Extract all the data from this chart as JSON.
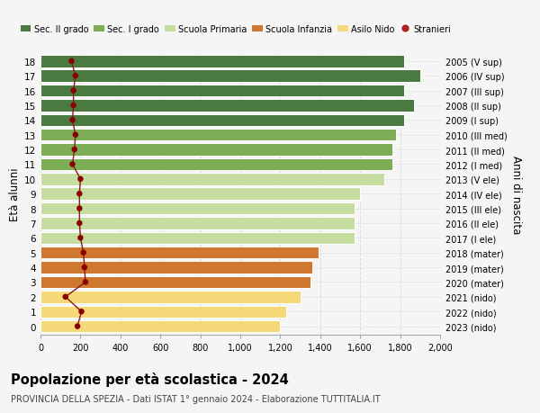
{
  "ages": [
    18,
    17,
    16,
    15,
    14,
    13,
    12,
    11,
    10,
    9,
    8,
    7,
    6,
    5,
    4,
    3,
    2,
    1,
    0
  ],
  "right_labels": [
    "2005 (V sup)",
    "2006 (IV sup)",
    "2007 (III sup)",
    "2008 (II sup)",
    "2009 (I sup)",
    "2010 (III med)",
    "2011 (II med)",
    "2012 (I med)",
    "2013 (V ele)",
    "2014 (IV ele)",
    "2015 (III ele)",
    "2016 (II ele)",
    "2017 (I ele)",
    "2018 (mater)",
    "2019 (mater)",
    "2020 (mater)",
    "2021 (nido)",
    "2022 (nido)",
    "2023 (nido)"
  ],
  "bar_values": [
    1820,
    1900,
    1820,
    1870,
    1820,
    1780,
    1760,
    1760,
    1720,
    1600,
    1570,
    1570,
    1570,
    1390,
    1360,
    1350,
    1300,
    1230,
    1200
  ],
  "bar_colors": [
    "#4a7a40",
    "#4a7a40",
    "#4a7a40",
    "#4a7a40",
    "#4a7a40",
    "#7dae55",
    "#7dae55",
    "#7dae55",
    "#c5dea0",
    "#c5dea0",
    "#c5dea0",
    "#c5dea0",
    "#c5dea0",
    "#d07830",
    "#d07830",
    "#d07830",
    "#f5d878",
    "#f5d878",
    "#f5d878"
  ],
  "stranieri_values": [
    155,
    175,
    165,
    165,
    160,
    175,
    170,
    160,
    200,
    195,
    195,
    195,
    200,
    215,
    220,
    225,
    125,
    205,
    185
  ],
  "xlim": [
    0,
    2000
  ],
  "xticks": [
    0,
    200,
    400,
    600,
    800,
    1000,
    1200,
    1400,
    1600,
    1800,
    2000
  ],
  "xtick_labels": [
    "0",
    "200",
    "400",
    "600",
    "800",
    "1,000",
    "1,200",
    "1,400",
    "1,600",
    "1,800",
    "2,000"
  ],
  "ylabel_left": "Età alunni",
  "ylabel_right": "Anni di nascita",
  "title": "Popolazione per età scolastica - 2024",
  "subtitle": "PROVINCIA DELLA SPEZIA - Dati ISTAT 1° gennaio 2024 - Elaborazione TUTTITALIA.IT",
  "legend_labels": [
    "Sec. II grado",
    "Sec. I grado",
    "Scuola Primaria",
    "Scuola Infanzia",
    "Asilo Nido",
    "Stranieri"
  ],
  "legend_colors": [
    "#4a7a40",
    "#7dae55",
    "#c5dea0",
    "#d07830",
    "#f5d878",
    "#b22222"
  ],
  "bg_color": "#f5f5f5",
  "grid_color": "#dddddd",
  "bar_height": 0.82,
  "stranieri_color": "#8b0000",
  "stranieri_line_color": "#8b1a1a"
}
